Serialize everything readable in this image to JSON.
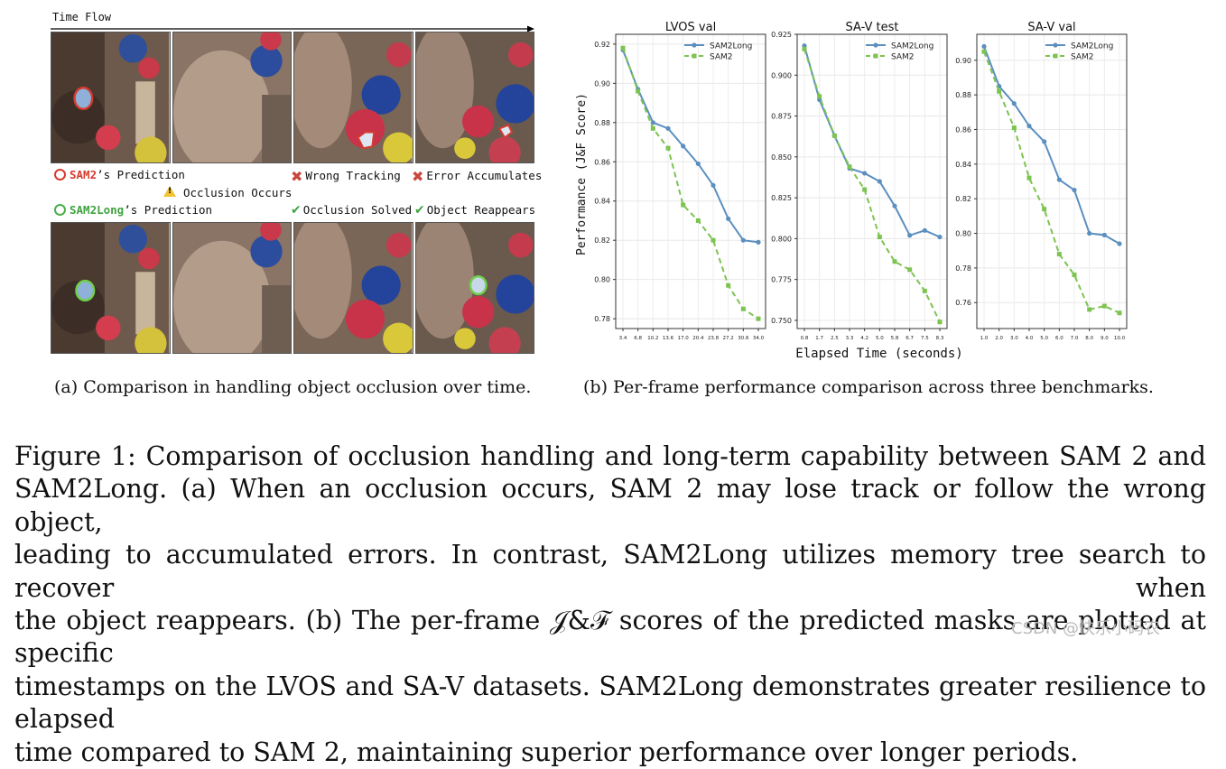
{
  "panel_a": {
    "time_flow": "Time Flow",
    "legend": {
      "sam2_name": "SAM2",
      "sam2_suffix": "’s Prediction",
      "samlong_name": "SAM2Long",
      "samlong_suffix": "’s Prediction",
      "occlusion_occurs": "Occlusion Occurs",
      "wrong_tracking": "Wrong Tracking",
      "error_accumulates": "Error Accumulates",
      "occlusion_solved": "Occlusion Solved",
      "object_reappears": "Object Reappears"
    },
    "caption": "(a) Comparison in handling object occlusion over time."
  },
  "panel_b": {
    "caption": "(b) Per-frame performance comparison across three benchmarks.",
    "ylabel": "Performance (J&F Score)",
    "xlabel": "Elapsed Time (seconds)"
  },
  "chart_data": [
    {
      "type": "line",
      "title": "LVOS val",
      "x": [
        "3.4",
        "6.8",
        "10.2",
        "13.6",
        "17.0",
        "20.4",
        "23.8",
        "27.2",
        "30.6",
        "34.0"
      ],
      "ylim": [
        0.775,
        0.925
      ],
      "yticks": [
        "0.78",
        "0.80",
        "0.82",
        "0.84",
        "0.86",
        "0.88",
        "0.90",
        "0.92"
      ],
      "ytick_values": [
        0.78,
        0.8,
        0.82,
        0.84,
        0.86,
        0.88,
        0.9,
        0.92
      ],
      "legend_position": "top-right",
      "series": [
        {
          "name": "SAM2Long",
          "color": "#5b8fc0",
          "dash": false,
          "values": [
            0.917,
            0.897,
            0.88,
            0.877,
            0.868,
            0.859,
            0.848,
            0.831,
            0.82,
            0.819
          ]
        },
        {
          "name": "SAM2",
          "color": "#7cc350",
          "dash": true,
          "values": [
            0.918,
            0.896,
            0.877,
            0.867,
            0.838,
            0.83,
            0.82,
            0.797,
            0.785,
            0.78
          ]
        }
      ]
    },
    {
      "type": "line",
      "title": "SA-V test",
      "x": [
        "0.8",
        "1.7",
        "2.5",
        "3.3",
        "4.2",
        "5.0",
        "5.8",
        "6.7",
        "7.5",
        "8.3"
      ],
      "ylim": [
        0.745,
        0.925
      ],
      "yticks": [
        "0.750",
        "0.775",
        "0.800",
        "0.825",
        "0.850",
        "0.875",
        "0.900",
        "0.925"
      ],
      "ytick_values": [
        0.75,
        0.775,
        0.8,
        0.825,
        0.85,
        0.875,
        0.9,
        0.925
      ],
      "legend_position": "top-right",
      "series": [
        {
          "name": "SAM2Long",
          "color": "#5b8fc0",
          "dash": false,
          "values": [
            0.918,
            0.885,
            0.863,
            0.843,
            0.84,
            0.835,
            0.82,
            0.802,
            0.805,
            0.801
          ]
        },
        {
          "name": "SAM2",
          "color": "#7cc350",
          "dash": true,
          "values": [
            0.916,
            0.887,
            0.863,
            0.844,
            0.83,
            0.801,
            0.786,
            0.781,
            0.768,
            0.749
          ]
        }
      ]
    },
    {
      "type": "line",
      "title": "SA-V val",
      "x": [
        "1.0",
        "2.0",
        "3.0",
        "4.0",
        "5.0",
        "6.0",
        "7.0",
        "8.0",
        "9.0",
        "10.0"
      ],
      "ylim": [
        0.745,
        0.915
      ],
      "yticks": [
        "0.76",
        "0.78",
        "0.80",
        "0.82",
        "0.84",
        "0.86",
        "0.88",
        "0.90"
      ],
      "ytick_values": [
        0.76,
        0.78,
        0.8,
        0.82,
        0.84,
        0.86,
        0.88,
        0.9
      ],
      "legend_position": "top-right",
      "series": [
        {
          "name": "SAM2Long",
          "color": "#5b8fc0",
          "dash": false,
          "values": [
            0.908,
            0.885,
            0.875,
            0.862,
            0.853,
            0.831,
            0.825,
            0.8,
            0.799,
            0.794
          ]
        },
        {
          "name": "SAM2",
          "color": "#7cc350",
          "dash": true,
          "values": [
            0.905,
            0.882,
            0.861,
            0.832,
            0.814,
            0.788,
            0.776,
            0.756,
            0.758,
            0.754
          ]
        }
      ]
    }
  ],
  "figure_caption": {
    "lines": [
      "Figure 1:  Comparison of occlusion handling and long-term capability between SAM 2 and",
      "SAM2Long.  (a) When an occlusion occurs, SAM 2 may lose track or follow the wrong object,",
      "leading to accumulated errors. In contrast, SAM2Long utilizes memory tree search to recover when",
      "the object reappears. (b) The per-frame 𝒥&ℱ scores of the predicted masks are plotted at specific",
      "timestamps on the LVOS and SA-V datasets. SAM2Long demonstrates greater resilience to elapsed",
      "time compared to SAM 2, maintaining superior performance over longer periods."
    ]
  },
  "watermark": "CSDN @快乐小码农"
}
